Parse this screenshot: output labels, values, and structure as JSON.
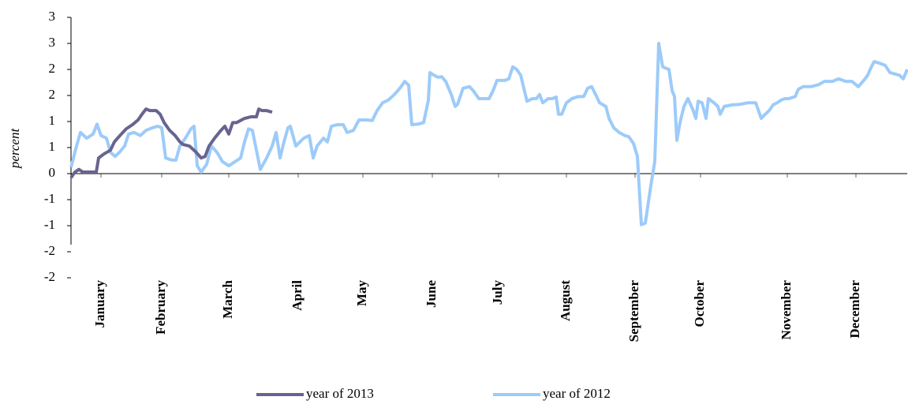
{
  "chart_data": {
    "type": "line",
    "y_label": "percent",
    "xlim": [
      0,
      265
    ],
    "xticks": [
      {
        "value": 9.5,
        "label": "January"
      },
      {
        "value": 28.75,
        "label": "February"
      },
      {
        "value": 50,
        "label": "March"
      },
      {
        "value": 72,
        "label": "April"
      },
      {
        "value": 92.5,
        "label": "May"
      },
      {
        "value": 114.5,
        "label": "June"
      },
      {
        "value": 135.5,
        "label": "July"
      },
      {
        "value": 157,
        "label": "August"
      },
      {
        "value": 178.75,
        "label": "September"
      },
      {
        "value": 199.5,
        "label": "October"
      },
      {
        "value": 227,
        "label": "November"
      },
      {
        "value": 248.75,
        "label": "December"
      }
    ],
    "ylim": [
      -2,
      3
    ],
    "yticks": [
      3,
      {
        "value": 2.5,
        "label": "3"
      },
      2,
      {
        "value": 1.5,
        "label": "2"
      },
      1,
      {
        "value": 0.5,
        "label": "1"
      },
      0,
      {
        "value": -0.5,
        "label": "-1"
      },
      -1,
      {
        "value": -1.5,
        "label": "-2"
      },
      -2
    ],
    "grid": false,
    "series": [
      {
        "name": "year of 2013",
        "color": "#67648f",
        "x": [
          0,
          1.25,
          2.5,
          3.75,
          5,
          7,
          8,
          8.75,
          10.5,
          12.5,
          13.75,
          15.5,
          17.5,
          19.5,
          21.25,
          22.5,
          23.75,
          25,
          27,
          28.25,
          29.5,
          31.25,
          33,
          34.5,
          35.5,
          37.5,
          39.5,
          41.25,
          42.5,
          43.75,
          45.5,
          47.5,
          48.75,
          50,
          51.25,
          52.5,
          55,
          57,
          58.75,
          59.5,
          60.5,
          62,
          63.75
        ],
        "values": [
          -0.08,
          0.03,
          0.08,
          0.03,
          0.03,
          0.03,
          0.03,
          0.3,
          0.38,
          0.45,
          0.61,
          0.73,
          0.86,
          0.94,
          1.03,
          1.14,
          1.24,
          1.21,
          1.21,
          1.14,
          0.98,
          0.83,
          0.73,
          0.61,
          0.56,
          0.53,
          0.42,
          0.3,
          0.33,
          0.53,
          0.68,
          0.83,
          0.91,
          0.76,
          0.98,
          0.98,
          1.06,
          1.09,
          1.09,
          1.24,
          1.21,
          1.21,
          1.18
        ]
      },
      {
        "name": "year of 2012",
        "color": "#9dcbf9",
        "x": [
          0,
          1.75,
          3,
          5,
          7,
          8.25,
          9.5,
          11.25,
          12.5,
          14,
          15.5,
          17,
          18.25,
          20,
          22,
          23.75,
          25.75,
          27.5,
          28.75,
          30,
          32,
          33.25,
          34.5,
          36.25,
          38,
          39,
          40,
          41.25,
          43,
          44.5,
          46.25,
          48,
          50,
          52,
          53.75,
          55,
          56.25,
          57.5,
          58.75,
          60,
          62,
          63.75,
          65,
          66.25,
          67.5,
          68.75,
          69.5,
          71.25,
          73.75,
          75.5,
          76.75,
          78,
          80,
          81.25,
          82.5,
          84.5,
          86.25,
          87.5,
          89.5,
          91.25,
          93.75,
          95.5,
          97,
          98.75,
          100.5,
          102.5,
          104.25,
          105.75,
          107,
          108,
          110,
          111.75,
          113.25,
          113.75,
          115,
          116.25,
          117.5,
          118.75,
          120.5,
          121.75,
          122.5,
          124.25,
          126.25,
          127.5,
          129.25,
          131.25,
          132.5,
          133.75,
          135,
          137.5,
          138.75,
          140,
          141.25,
          142.5,
          144.5,
          146.25,
          147.5,
          148.5,
          149.5,
          151.25,
          152.5,
          153.75,
          154.5,
          155.5,
          157,
          158.75,
          160.75,
          162.5,
          163.75,
          165,
          166.25,
          167.5,
          169.5,
          170.5,
          172,
          173.75,
          175.5,
          176.75,
          178.25,
          179.5,
          180.75,
          182,
          183.75,
          185,
          186.25,
          187.5,
          189.5,
          190.5,
          191.25,
          192,
          193,
          194.25,
          195.5,
          197,
          198,
          198.75,
          200,
          201.25,
          202,
          203.75,
          205,
          205.75,
          207,
          209.5,
          212,
          214.5,
          217,
          218.75,
          220,
          221.25,
          222.5,
          223.75,
          225,
          226.25,
          227.5,
          229.5,
          230.5,
          232,
          234.5,
          237,
          238.75,
          241.25,
          243.25,
          245.5,
          247.5,
          249.5,
          251.25,
          252.5,
          253.25,
          254.5,
          256.25,
          258,
          259.5,
          262.5,
          263.75,
          265
        ],
        "values": [
          0.12,
          0.53,
          0.79,
          0.68,
          0.76,
          0.95,
          0.73,
          0.68,
          0.41,
          0.33,
          0.42,
          0.53,
          0.76,
          0.79,
          0.73,
          0.83,
          0.88,
          0.91,
          0.88,
          0.3,
          0.26,
          0.26,
          0.53,
          0.68,
          0.86,
          0.91,
          0.15,
          0.03,
          0.18,
          0.53,
          0.41,
          0.23,
          0.15,
          0.23,
          0.3,
          0.61,
          0.86,
          0.83,
          0.45,
          0.08,
          0.3,
          0.53,
          0.79,
          0.3,
          0.61,
          0.88,
          0.91,
          0.53,
          0.68,
          0.73,
          0.3,
          0.53,
          0.68,
          0.61,
          0.91,
          0.94,
          0.94,
          0.79,
          0.83,
          1.03,
          1.03,
          1.02,
          1.21,
          1.36,
          1.41,
          1.52,
          1.64,
          1.77,
          1.7,
          0.94,
          0.95,
          0.98,
          1.41,
          1.94,
          1.89,
          1.85,
          1.86,
          1.77,
          1.52,
          1.29,
          1.33,
          1.64,
          1.67,
          1.59,
          1.44,
          1.44,
          1.44,
          1.59,
          1.79,
          1.79,
          1.82,
          2.05,
          2.0,
          1.89,
          1.39,
          1.44,
          1.44,
          1.52,
          1.36,
          1.44,
          1.44,
          1.47,
          1.14,
          1.14,
          1.36,
          1.44,
          1.48,
          1.48,
          1.64,
          1.67,
          1.52,
          1.36,
          1.29,
          1.06,
          0.88,
          0.79,
          0.73,
          0.71,
          0.58,
          0.33,
          -0.98,
          -0.95,
          -0.23,
          0.23,
          2.5,
          2.05,
          2.0,
          1.59,
          1.48,
          0.64,
          0.98,
          1.29,
          1.44,
          1.24,
          1.06,
          1.39,
          1.36,
          1.06,
          1.44,
          1.36,
          1.29,
          1.14,
          1.29,
          1.32,
          1.33,
          1.36,
          1.36,
          1.06,
          1.14,
          1.21,
          1.32,
          1.36,
          1.41,
          1.44,
          1.44,
          1.48,
          1.62,
          1.67,
          1.67,
          1.71,
          1.77,
          1.77,
          1.82,
          1.77,
          1.77,
          1.67,
          1.79,
          1.89,
          2.0,
          2.15,
          2.12,
          2.08,
          1.94,
          1.89,
          1.82,
          2.0
        ]
      }
    ]
  }
}
